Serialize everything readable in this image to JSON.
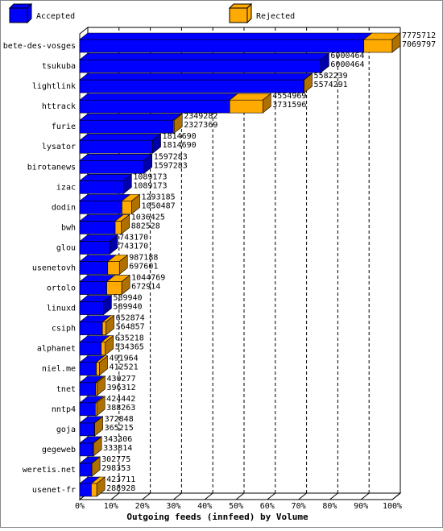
{
  "chart_data": {
    "type": "bar3d",
    "title": "Outgoing feeds (innfeed) by Volume",
    "categories": [
      "bete-des-vosges",
      "tsukuba",
      "lightlink",
      "httrack",
      "furie",
      "lysator",
      "birotanews",
      "izac",
      "dodin",
      "bwh",
      "glou",
      "usenetovh",
      "ortolo",
      "linuxd",
      "csiph",
      "alphanet",
      "niel.me",
      "tnet",
      "nntp4",
      "goja",
      "gegeweb",
      "weretis.net",
      "usenet-fr"
    ],
    "totals": [
      7775712,
      6000464,
      5582239,
      4554969,
      2349282,
      1814690,
      1597283,
      1089173,
      1293185,
      1036425,
      743170,
      987188,
      1044769,
      589940,
      652874,
      635218,
      491964,
      430277,
      424442,
      372848,
      343306,
      302775,
      423711
    ],
    "series": [
      {
        "name": "Accepted",
        "color": "#0000ff",
        "values": [
          7069797,
          6000464,
          5574291,
          3731596,
          2327369,
          1814690,
          1597283,
          1089173,
          1050487,
          882528,
          743170,
          697601,
          672914,
          589940,
          564857,
          534365,
          412521,
          396312,
          388263,
          365215,
          333814,
          298353,
          288928
        ]
      },
      {
        "name": "Rejected",
        "color": "#ffaa00",
        "values": [
          705915,
          0,
          7948,
          823373,
          21913,
          0,
          0,
          0,
          242698,
          153897,
          0,
          289587,
          371855,
          0,
          88017,
          100853,
          79443,
          33965,
          36179,
          7633,
          9492,
          4422,
          134783
        ]
      }
    ],
    "xticks": [
      {
        "value": 0,
        "label": "0%"
      },
      {
        "value": 10,
        "label": "10%"
      },
      {
        "value": 20,
        "label": "20%"
      },
      {
        "value": 30,
        "label": "30%"
      },
      {
        "value": 40,
        "label": "40%"
      },
      {
        "value": 50,
        "label": "50%"
      },
      {
        "value": 60,
        "label": "60%"
      },
      {
        "value": 70,
        "label": "70%"
      },
      {
        "value": 80,
        "label": "80%"
      },
      {
        "value": 90,
        "label": "90%"
      },
      {
        "value": 100,
        "label": "100%"
      }
    ],
    "xlim": [
      0,
      100
    ]
  }
}
